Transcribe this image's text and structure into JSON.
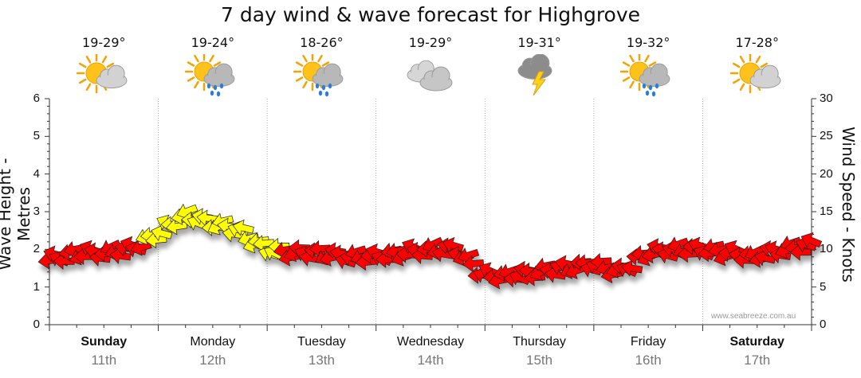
{
  "chart_data": {
    "type": "line",
    "title": "7 day wind & wave forecast for Highgrove",
    "ylabel_left": "Wave Height - Metres",
    "ylabel_right": "Wind Speed - Knots",
    "ylim_left": [
      0,
      6
    ],
    "ylim_right": [
      0,
      30
    ],
    "yticks_left": [
      "0",
      "1",
      "2",
      "3",
      "4",
      "5",
      "6"
    ],
    "yticks_right": [
      "0",
      "5",
      "10",
      "15",
      "20",
      "25",
      "30"
    ],
    "grid": "vertical-dotted",
    "days": [
      {
        "day": "Sunday",
        "date": "11th",
        "temp": "19-29°",
        "icon": "partly-cloudy-icon",
        "bold": true
      },
      {
        "day": "Monday",
        "date": "12th",
        "temp": "19-24°",
        "icon": "sun-cloud-rain-icon",
        "bold": false
      },
      {
        "day": "Tuesday",
        "date": "13th",
        "temp": "18-26°",
        "icon": "sun-cloud-rain-icon",
        "bold": false
      },
      {
        "day": "Wednesday",
        "date": "14th",
        "temp": "19-29°",
        "icon": "cloudy-icon",
        "bold": false
      },
      {
        "day": "Thursday",
        "date": "15th",
        "temp": "19-31°",
        "icon": "thunderstorm-icon",
        "bold": false
      },
      {
        "day": "Friday",
        "date": "16th",
        "temp": "19-32°",
        "icon": "sun-cloud-rain-icon",
        "bold": false
      },
      {
        "day": "Saturday",
        "date": "17th",
        "temp": "17-28°",
        "icon": "partly-cloudy-icon",
        "bold": true
      }
    ],
    "series": [
      {
        "name": "Wind Speed",
        "unit": "knots",
        "x_days": [
          0.0,
          0.25,
          0.5,
          0.75,
          1.0,
          1.25,
          1.5,
          1.75,
          2.0,
          2.25,
          2.5,
          2.75,
          3.0,
          3.25,
          3.5,
          3.75,
          4.0,
          4.25,
          4.5,
          4.75,
          5.0,
          5.25,
          5.5,
          5.75,
          6.0,
          6.25,
          6.5,
          6.75,
          7.0
        ],
        "values": [
          8.5,
          9.5,
          9.5,
          10.0,
          12.0,
          14.5,
          13.5,
          12.5,
          10.0,
          9.5,
          9.5,
          9.0,
          9.0,
          9.5,
          10.0,
          10.0,
          6.5,
          6.5,
          7.0,
          7.5,
          8.0,
          7.0,
          9.5,
          10.0,
          10.0,
          9.5,
          9.0,
          10.0,
          10.5
        ],
        "colors": {
          "normal": "#ff0000",
          "strong": "#ffff00"
        },
        "strong_range_days": [
          0.85,
          2.12
        ]
      }
    ]
  },
  "watermark": "www.seabreeze.com.au"
}
